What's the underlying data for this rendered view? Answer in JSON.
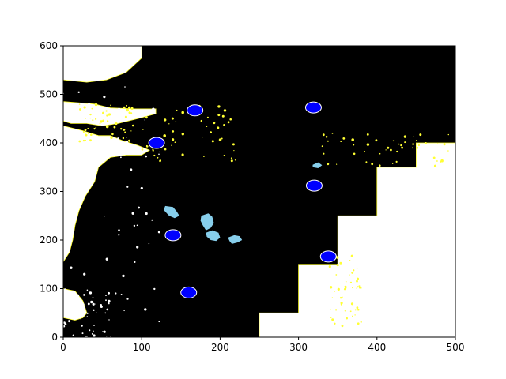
{
  "chart_data": {
    "type": "scatter",
    "title": "",
    "xlabel": "",
    "ylabel": "",
    "xlim": [
      0,
      500
    ],
    "ylim": [
      0,
      600
    ],
    "x_ticks": [
      "0",
      "100",
      "200",
      "300",
      "400",
      "500"
    ],
    "y_ticks": [
      "0",
      "100",
      "200",
      "300",
      "400",
      "500",
      "600"
    ],
    "grid": false,
    "legend": "none",
    "background": {
      "description_type": "raster-map",
      "water_color": "#000000",
      "land_color": "#ffffff",
      "noise_color": "#ffff33",
      "feature_color": "#87ceeb",
      "land_polygons": [
        {
          "name": "upper-left-land",
          "points": [
            [
              0,
              600
            ],
            [
              100,
              600
            ],
            [
              100,
              575
            ],
            [
              80,
              545
            ],
            [
              55,
              530
            ],
            [
              30,
              525
            ],
            [
              0,
              530
            ]
          ]
        },
        {
          "name": "left-peninsula",
          "points": [
            [
              0,
              485
            ],
            [
              40,
              480
            ],
            [
              60,
              472
            ],
            [
              90,
              470
            ],
            [
              118,
              470
            ],
            [
              118,
              460
            ],
            [
              95,
              450
            ],
            [
              70,
              440
            ],
            [
              50,
              435
            ],
            [
              30,
              440
            ],
            [
              10,
              440
            ],
            [
              0,
              445
            ]
          ]
        },
        {
          "name": "left-coast-land",
          "points": [
            [
              0,
              435
            ],
            [
              25,
              425
            ],
            [
              45,
              415
            ],
            [
              60,
              415
            ],
            [
              75,
              405
            ],
            [
              95,
              395
            ],
            [
              110,
              385
            ],
            [
              100,
              375
            ],
            [
              80,
              375
            ],
            [
              60,
              370
            ],
            [
              45,
              350
            ],
            [
              40,
              320
            ],
            [
              28,
              290
            ],
            [
              20,
              260
            ],
            [
              15,
              230
            ],
            [
              12,
              200
            ],
            [
              8,
              175
            ],
            [
              0,
              155
            ]
          ]
        },
        {
          "name": "lower-left-land",
          "points": [
            [
              0,
              100
            ],
            [
              15,
              95
            ],
            [
              25,
              75
            ],
            [
              30,
              50
            ],
            [
              25,
              40
            ],
            [
              15,
              35
            ],
            [
              0,
              40
            ]
          ]
        },
        {
          "name": "bottom-right-steps",
          "points": [
            [
              500,
              400
            ],
            [
              450,
              400
            ],
            [
              450,
              350
            ],
            [
              400,
              350
            ],
            [
              400,
              250
            ],
            [
              350,
              250
            ],
            [
              350,
              150
            ],
            [
              300,
              150
            ],
            [
              300,
              50
            ],
            [
              250,
              50
            ],
            [
              250,
              0
            ],
            [
              500,
              0
            ]
          ]
        }
      ],
      "features": [
        {
          "name": "feature-1",
          "points": [
            [
              130,
              270
            ],
            [
              140,
              268
            ],
            [
              145,
              258
            ],
            [
              148,
              250
            ],
            [
              142,
              245
            ],
            [
              135,
              250
            ],
            [
              128,
              262
            ]
          ]
        },
        {
          "name": "feature-2",
          "points": [
            [
              176,
              250
            ],
            [
              185,
              255
            ],
            [
              190,
              248
            ],
            [
              192,
              235
            ],
            [
              188,
              225
            ],
            [
              182,
              220
            ],
            [
              178,
              230
            ],
            [
              175,
              240
            ]
          ]
        },
        {
          "name": "feature-3",
          "points": [
            [
              182,
              215
            ],
            [
              190,
              220
            ],
            [
              198,
              215
            ],
            [
              200,
              205
            ],
            [
              195,
              198
            ],
            [
              188,
              200
            ],
            [
              183,
              207
            ]
          ]
        },
        {
          "name": "feature-4",
          "points": [
            [
              210,
              205
            ],
            [
              218,
              210
            ],
            [
              225,
              208
            ],
            [
              228,
              200
            ],
            [
              222,
              195
            ],
            [
              215,
              192
            ],
            [
              212,
              198
            ]
          ]
        },
        {
          "name": "feature-5",
          "points": [
            [
              318,
              355
            ],
            [
              325,
              360
            ],
            [
              330,
              354
            ],
            [
              325,
              348
            ],
            [
              318,
              350
            ]
          ]
        }
      ]
    },
    "series": [
      {
        "marker": "blue-ellipse",
        "color": "#0000ff",
        "x": [
          168,
          319,
          119,
          320,
          140,
          338,
          160
        ],
        "y": [
          467,
          473,
          400,
          312,
          210,
          166,
          92
        ]
      }
    ]
  }
}
